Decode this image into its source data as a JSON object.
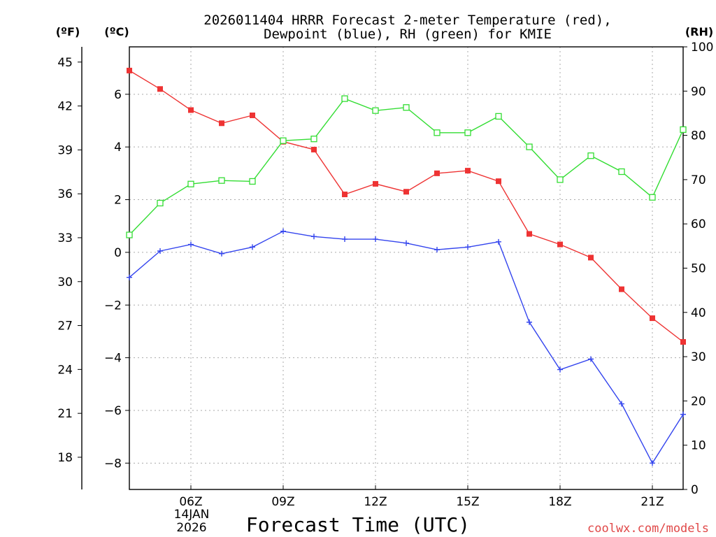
{
  "chart_data": {
    "type": "line",
    "title": [
      "2026011404 HRRR Forecast 2-meter Temperature (red),",
      "Dewpoint (blue), RH (green) for KMIE"
    ],
    "xlabel": "Forecast Time (UTC)",
    "date_label": [
      "14JAN",
      "2026"
    ],
    "watermark": "coolwx.com/models",
    "units": {
      "fahrenheit": "(ºF)",
      "celsius": "(ºC)",
      "rh": "(RH)"
    },
    "x_hours": [
      4,
      5,
      6,
      7,
      8,
      9,
      10,
      11,
      12,
      13,
      14,
      15,
      16,
      17,
      18,
      19,
      20,
      21,
      22
    ],
    "xlim": [
      4,
      22
    ],
    "x_ticks": [
      {
        "hour": 6,
        "label": "06Z"
      },
      {
        "hour": 9,
        "label": "09Z"
      },
      {
        "hour": 12,
        "label": "12Z"
      },
      {
        "hour": 15,
        "label": "15Z"
      },
      {
        "hour": 18,
        "label": "18Z"
      },
      {
        "hour": 21,
        "label": "21Z"
      }
    ],
    "ylim_c": [
      -9.0,
      7.8
    ],
    "y_ticks_c": [
      {
        "v": 6,
        "label": "6"
      },
      {
        "v": 4,
        "label": "4"
      },
      {
        "v": 2,
        "label": "2"
      },
      {
        "v": 0,
        "label": "0"
      },
      {
        "v": -2,
        "label": "−2"
      },
      {
        "v": -4,
        "label": "−4"
      },
      {
        "v": -6,
        "label": "−6"
      },
      {
        "v": -8,
        "label": "−8"
      }
    ],
    "y_ticks_f": [
      {
        "v": 45,
        "label": "45"
      },
      {
        "v": 42,
        "label": "42"
      },
      {
        "v": 39,
        "label": "39"
      },
      {
        "v": 36,
        "label": "36"
      },
      {
        "v": 33,
        "label": "33"
      },
      {
        "v": 30,
        "label": "30"
      },
      {
        "v": 27,
        "label": "27"
      },
      {
        "v": 24,
        "label": "24"
      },
      {
        "v": 21,
        "label": "21"
      },
      {
        "v": 18,
        "label": "18"
      }
    ],
    "ylim_rh": [
      0,
      100
    ],
    "y_ticks_rh": [
      {
        "v": 100,
        "label": "100"
      },
      {
        "v": 90,
        "label": "90"
      },
      {
        "v": 80,
        "label": "80"
      },
      {
        "v": 70,
        "label": "70"
      },
      {
        "v": 60,
        "label": "60"
      },
      {
        "v": 50,
        "label": "50"
      },
      {
        "v": 40,
        "label": "40"
      },
      {
        "v": 30,
        "label": "30"
      },
      {
        "v": 20,
        "label": "20"
      },
      {
        "v": 10,
        "label": "10"
      },
      {
        "v": 0,
        "label": "0"
      }
    ],
    "series": [
      {
        "name": "2-meter Temperature",
        "axis": "c",
        "color": "#ee3333",
        "marker": "filled-square",
        "values": [
          6.9,
          6.2,
          5.4,
          4.9,
          5.2,
          4.2,
          3.9,
          2.2,
          2.6,
          2.3,
          3.0,
          3.1,
          2.7,
          0.7,
          0.3,
          -0.2,
          -1.4,
          -2.5,
          -3.4
        ]
      },
      {
        "name": "Dewpoint",
        "axis": "c",
        "color": "#3344ee",
        "marker": "plus",
        "values": [
          -0.95,
          0.05,
          0.3,
          -0.05,
          0.2,
          0.8,
          0.6,
          0.5,
          0.5,
          0.35,
          0.1,
          0.2,
          0.4,
          -2.65,
          -4.45,
          -4.05,
          -5.75,
          -8.0,
          -6.15
        ]
      },
      {
        "name": "RH",
        "axis": "rh",
        "color": "#33dd33",
        "marker": "open-square",
        "values": [
          57.5,
          64.7,
          69.0,
          69.8,
          69.6,
          78.8,
          79.2,
          88.3,
          85.6,
          86.3,
          80.6,
          80.6,
          84.3,
          77.4,
          70.0,
          75.4,
          71.8,
          66.0,
          81.3
        ]
      }
    ]
  }
}
